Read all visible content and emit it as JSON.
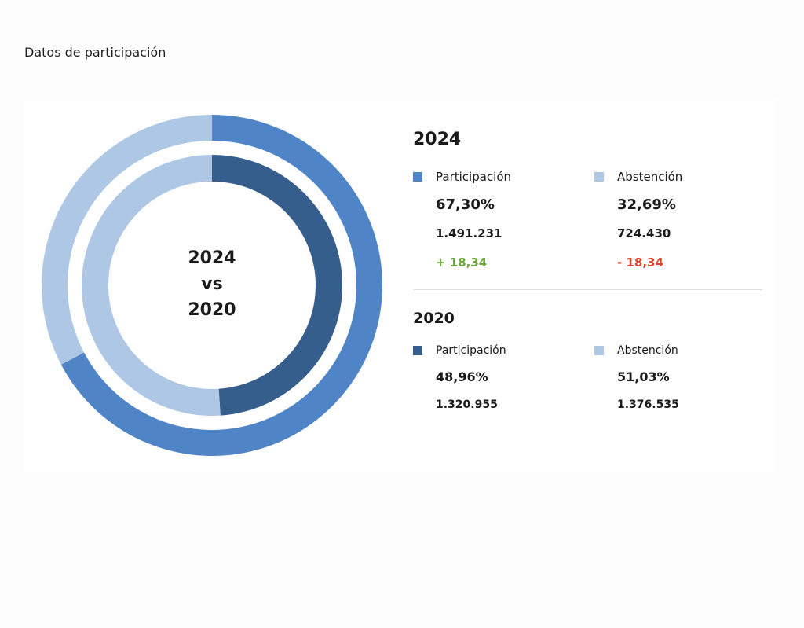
{
  "page_title": "Datos de participación",
  "center": {
    "line1": "2024",
    "line2": "vs",
    "line3": "2020"
  },
  "colors": {
    "participacion_2024": "#4f85c7",
    "participacion_2020": "#365e8c",
    "abstencion": "#aec7e4",
    "positive": "#6aa536",
    "negative": "#d9452e"
  },
  "y2024": {
    "title": "2024",
    "participacion": {
      "label": "Participación",
      "pct": "67,30%",
      "votes": "1.491.231",
      "delta": "+ 18,34"
    },
    "abstencion": {
      "label": "Abstención",
      "pct": "32,69%",
      "votes": "724.430",
      "delta": "- 18,34"
    }
  },
  "y2020": {
    "title": "2020",
    "participacion": {
      "label": "Participación",
      "pct": "48,96%",
      "votes": "1.320.955"
    },
    "abstencion": {
      "label": "Abstención",
      "pct": "51,03%",
      "votes": "1.376.535"
    }
  },
  "chart_data": {
    "type": "pie",
    "variant": "nested-donut",
    "rings": [
      {
        "name": "2024",
        "position": "outer",
        "categories": [
          "Participación",
          "Abstención"
        ],
        "values": [
          67.3,
          32.69
        ]
      },
      {
        "name": "2020",
        "position": "inner",
        "categories": [
          "Participación",
          "Abstención"
        ],
        "values": [
          48.96,
          51.03
        ]
      }
    ]
  }
}
